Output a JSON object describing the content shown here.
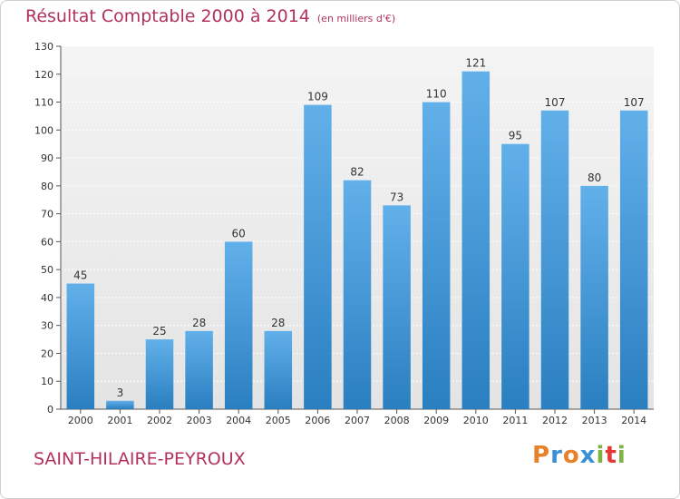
{
  "header": {
    "title": "Résultat Comptable 2000 à 2014",
    "unit": "(en milliers d'€)"
  },
  "footer": {
    "location": "SAINT-HILAIRE-PEYROUX",
    "logo_text": "Proxiti",
    "logo_colors": [
      "#e8822a",
      "#3a8fd6",
      "#e8822a",
      "#3a8fd6",
      "#7cb342",
      "#e53935",
      "#7cb342"
    ]
  },
  "colors": {
    "title": "#b3315f",
    "bar_light": "#62b0ea",
    "bar_dark": "#2a7fc0",
    "plot_bg": "#ebebeb"
  },
  "chart_data": {
    "type": "bar",
    "title": "Résultat Comptable 2000 à 2014",
    "subtitle": "(en milliers d'€)",
    "categories": [
      "2000",
      "2001",
      "2002",
      "2003",
      "2004",
      "2005",
      "2006",
      "2007",
      "2008",
      "2009",
      "2010",
      "2011",
      "2012",
      "2013",
      "2014"
    ],
    "values": [
      45,
      3,
      25,
      28,
      60,
      28,
      109,
      82,
      73,
      110,
      121,
      95,
      107,
      80,
      107
    ],
    "ylim": [
      0,
      130
    ],
    "yticks": [
      0,
      10,
      20,
      30,
      40,
      50,
      60,
      70,
      80,
      90,
      100,
      110,
      120,
      130
    ],
    "grid": true,
    "legend": "none"
  }
}
